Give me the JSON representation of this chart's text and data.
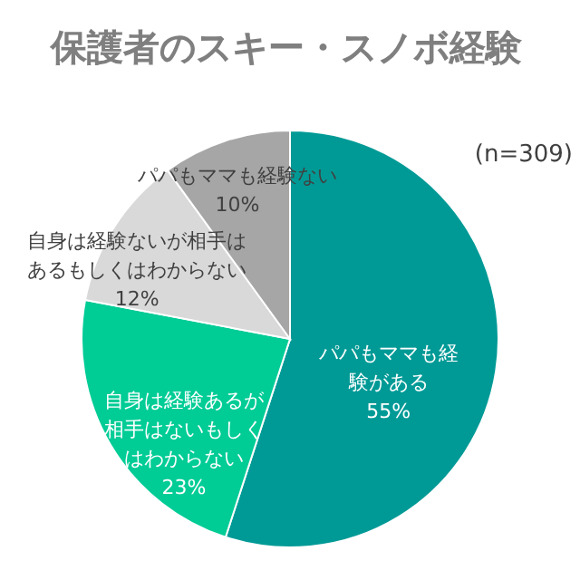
{
  "chart_data": {
    "type": "pie",
    "title": "保護者のスキー・スノボ経験",
    "annotations": [
      "(n=309)"
    ],
    "categories": [
      "パパもママも経験がある",
      "自身は経験あるが相手はないもしくはわからない",
      "自身は経験ないが相手はあるもしくはわからない",
      "パパもママも経験ない"
    ],
    "values": [
      55,
      23,
      12,
      10
    ],
    "value_labels": [
      "55%",
      "23%",
      "12%",
      "10%"
    ],
    "colors": [
      "#009a96",
      "#00cc96",
      "#d9d9d9",
      "#a6a6a6"
    ]
  }
}
